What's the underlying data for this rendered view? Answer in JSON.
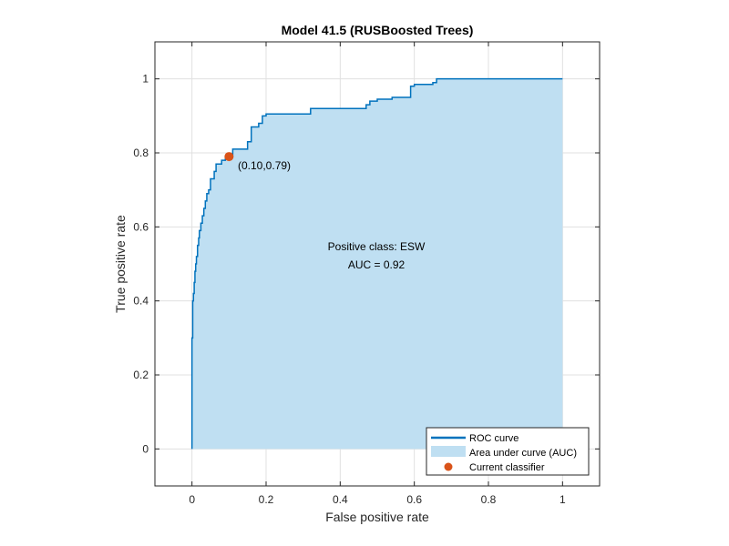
{
  "colors": {
    "roc_line": "#0072BD",
    "auc_fill": "#BFDFF2",
    "classifier_point": "#D95319",
    "grid": "#E0E0E0",
    "axis": "#262626"
  },
  "chart_data": {
    "type": "line",
    "title": "Model 41.5 (RUSBoosted Trees)",
    "xlabel": "False positive rate",
    "ylabel": "True positive rate",
    "xlim": [
      -0.1,
      1.1
    ],
    "ylim": [
      -0.1,
      1.1
    ],
    "xticks": [
      0,
      0.2,
      0.4,
      0.6,
      0.8,
      1
    ],
    "xtick_labels": [
      "0",
      "0.2",
      "0.4",
      "0.6",
      "0.8",
      "1"
    ],
    "yticks": [
      0,
      0.2,
      0.4,
      0.6,
      0.8,
      1
    ],
    "ytick_labels": [
      "0",
      "0.2",
      "0.4",
      "0.6",
      "0.8",
      "1"
    ],
    "grid": true,
    "series": [
      {
        "name": "ROC curve",
        "x": [
          0,
          0,
          0.002,
          0.004,
          0.006,
          0.008,
          0.01,
          0.012,
          0.015,
          0.018,
          0.02,
          0.024,
          0.028,
          0.032,
          0.036,
          0.04,
          0.045,
          0.05,
          0.055,
          0.06,
          0.065,
          0.07,
          0.08,
          0.09,
          0.1,
          0.11,
          0.12,
          0.13,
          0.15,
          0.16,
          0.17,
          0.18,
          0.19,
          0.2,
          0.21,
          0.25,
          0.3,
          0.32,
          0.35,
          0.4,
          0.44,
          0.47,
          0.48,
          0.5,
          0.54,
          0.58,
          0.59,
          0.6,
          0.64,
          0.65,
          0.66,
          0.7,
          0.8,
          0.9,
          1.0
        ],
        "y": [
          0,
          0.3,
          0.4,
          0.42,
          0.45,
          0.48,
          0.5,
          0.52,
          0.55,
          0.57,
          0.59,
          0.61,
          0.63,
          0.65,
          0.67,
          0.69,
          0.7,
          0.73,
          0.73,
          0.75,
          0.77,
          0.77,
          0.78,
          0.79,
          0.79,
          0.81,
          0.81,
          0.81,
          0.83,
          0.87,
          0.87,
          0.88,
          0.9,
          0.905,
          0.905,
          0.905,
          0.905,
          0.92,
          0.92,
          0.92,
          0.92,
          0.93,
          0.94,
          0.945,
          0.95,
          0.95,
          0.98,
          0.985,
          0.985,
          0.99,
          1.0,
          1.0,
          1.0,
          1.0,
          1.0
        ]
      }
    ],
    "current_classifier": {
      "x": 0.1,
      "y": 0.79,
      "label": "(0.10,0.79)"
    },
    "annotations": {
      "positive_class": "Positive class: ESW",
      "auc": "AUC = 0.92"
    },
    "legend": {
      "placement": "bottom-right",
      "entries": [
        "ROC curve",
        "Area under curve (AUC)",
        "Current classifier"
      ]
    }
  }
}
